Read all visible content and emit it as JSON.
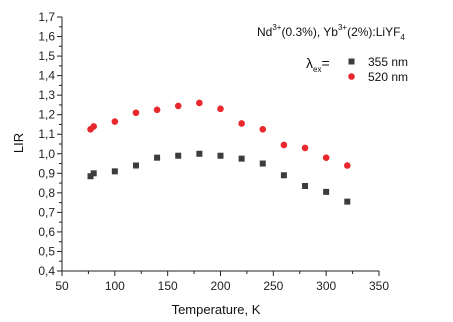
{
  "chart_data": {
    "type": "scatter",
    "title_parts": {
      "t1": "Nd",
      "s1": "3+",
      "t2": "(0.3%), Yb",
      "s2": "3+",
      "t3": "(2%):LiYF",
      "sub": "4"
    },
    "legend_prefix": {
      "lambda": "λ",
      "sub": "ex",
      "eq": "="
    },
    "xlabel": "Temperature, K",
    "ylabel": "LIR",
    "xlim": [
      50,
      350
    ],
    "ylim": [
      0.4,
      1.7
    ],
    "xticks": [
      50,
      100,
      150,
      200,
      250,
      300,
      350
    ],
    "yticks": [
      0.4,
      0.5,
      0.6,
      0.7,
      0.8,
      0.9,
      1.0,
      1.1,
      1.2,
      1.3,
      1.4,
      1.5,
      1.6,
      1.7
    ],
    "ytick_labels": [
      "0,4",
      "0,5",
      "0,6",
      "0,7",
      "0,8",
      "0,9",
      "1,0",
      "1,1",
      "1,2",
      "1,3",
      "1,4",
      "1,5",
      "1,6",
      "1,7"
    ],
    "grid": false,
    "legend_position": "top-right",
    "series": [
      {
        "name": "355 nm",
        "marker": "square",
        "color": "#3c3c3c",
        "x": [
          77,
          80,
          100,
          120,
          140,
          160,
          180,
          200,
          220,
          240,
          260,
          280,
          300,
          320
        ],
        "y": [
          0.885,
          0.9,
          0.91,
          0.94,
          0.98,
          0.99,
          1.0,
          0.99,
          0.975,
          0.95,
          0.89,
          0.835,
          0.805,
          0.755
        ]
      },
      {
        "name": "520 nm",
        "marker": "circle",
        "color": "#e8282c",
        "x": [
          77,
          80,
          100,
          120,
          140,
          160,
          180,
          200,
          220,
          240,
          260,
          280,
          300,
          320
        ],
        "y": [
          1.125,
          1.14,
          1.165,
          1.21,
          1.225,
          1.245,
          1.26,
          1.23,
          1.155,
          1.125,
          1.045,
          1.03,
          0.98,
          0.94
        ]
      }
    ]
  }
}
